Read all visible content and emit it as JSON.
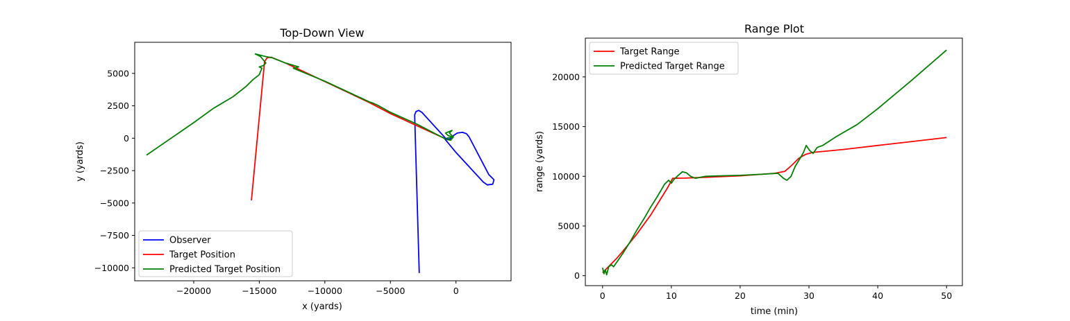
{
  "chart_data": [
    {
      "type": "line",
      "title": "Top-Down View",
      "xlabel": "x (yards)",
      "ylabel": "y (yards)",
      "xlim": [
        -24500,
        4200
      ],
      "ylim": [
        -11000,
        7400
      ],
      "xticks": [
        -20000,
        -15000,
        -10000,
        -5000,
        0
      ],
      "yticks": [
        -10000,
        -7500,
        -5000,
        -2500,
        0,
        2500,
        5000
      ],
      "xtick_labels": [
        "−20000",
        "−15000",
        "−10000",
        "−5000",
        "0"
      ],
      "ytick_labels": [
        "−10000",
        "−7500",
        "−5000",
        "−2500",
        "0",
        "2500",
        "5000"
      ],
      "grid": false,
      "legend_position": "lower-left",
      "series": [
        {
          "name": "Observer",
          "color": "#0000ff",
          "points": [
            [
              -2800,
              -10400
            ],
            [
              -3150,
              1800
            ],
            [
              -3050,
              2050
            ],
            [
              -2850,
              2150
            ],
            [
              -2600,
              2000
            ],
            [
              -800,
              0
            ],
            [
              -500,
              -100
            ],
            [
              -200,
              200
            ],
            [
              100,
              400
            ],
            [
              500,
              450
            ],
            [
              800,
              350
            ],
            [
              1000,
              100
            ],
            [
              2500,
              -2800
            ],
            [
              2900,
              -3200
            ],
            [
              2800,
              -3550
            ],
            [
              2400,
              -3600
            ],
            [
              2100,
              -3400
            ],
            [
              0,
              -1100
            ],
            [
              -900,
              0
            ]
          ]
        },
        {
          "name": "Target Position",
          "color": "#ff0000",
          "points": [
            [
              -15600,
              -4800
            ],
            [
              -14600,
              5900
            ],
            [
              -14400,
              6200
            ],
            [
              -14100,
              6250
            ],
            [
              -13000,
              5800
            ],
            [
              -6600,
              2750
            ],
            [
              -5000,
              1900
            ],
            [
              -900,
              0
            ]
          ]
        },
        {
          "name": "Predicted Target Position",
          "color": "#008000",
          "points": [
            [
              -23600,
              -1300
            ],
            [
              -20000,
              1200
            ],
            [
              -18500,
              2300
            ],
            [
              -17000,
              3200
            ],
            [
              -16000,
              4000
            ],
            [
              -15500,
              4500
            ],
            [
              -15000,
              4900
            ],
            [
              -14800,
              5400
            ],
            [
              -15000,
              5500
            ],
            [
              -14700,
              5600
            ],
            [
              -14500,
              5800
            ],
            [
              -14900,
              6300
            ],
            [
              -15300,
              6500
            ],
            [
              -14500,
              6300
            ],
            [
              -14000,
              6200
            ],
            [
              -13000,
              5800
            ],
            [
              -12000,
              5500
            ],
            [
              -12400,
              5400
            ],
            [
              -10000,
              4400
            ],
            [
              -6600,
              2800
            ],
            [
              -6300,
              2700
            ],
            [
              -5900,
              2500
            ],
            [
              -5000,
              2000
            ],
            [
              -3000,
              1100
            ],
            [
              -1500,
              300
            ],
            [
              -700,
              -100
            ],
            [
              -400,
              -150
            ],
            [
              -200,
              100
            ],
            [
              -500,
              400
            ],
            [
              -300,
              600
            ],
            [
              -800,
              400
            ],
            [
              -600,
              200
            ],
            [
              -200,
              100
            ],
            [
              -700,
              0
            ]
          ]
        }
      ]
    },
    {
      "type": "line",
      "title": "Range Plot",
      "xlabel": "time (min)",
      "ylabel": "range (yards)",
      "xlim": [
        -2.5,
        52.3
      ],
      "ylim": [
        -1000,
        23900
      ],
      "xticks": [
        0,
        10,
        20,
        30,
        40,
        50
      ],
      "yticks": [
        0,
        5000,
        10000,
        15000,
        20000
      ],
      "xtick_labels": [
        "0",
        "10",
        "20",
        "30",
        "40",
        "50"
      ],
      "ytick_labels": [
        "0",
        "5000",
        "10000",
        "15000",
        "20000"
      ],
      "grid": false,
      "legend_position": "upper-left",
      "series": [
        {
          "name": "Target Range",
          "color": "#ff0000",
          "points": [
            [
              0,
              300
            ],
            [
              1,
              1000
            ],
            [
              2,
              1700
            ],
            [
              3,
              2500
            ],
            [
              5,
              4200
            ],
            [
              7,
              6100
            ],
            [
              9.5,
              8900
            ],
            [
              10.2,
              9800
            ],
            [
              12,
              9820
            ],
            [
              15,
              9900
            ],
            [
              20,
              10050
            ],
            [
              25,
              10300
            ],
            [
              26.5,
              10500
            ],
            [
              27.5,
              11100
            ],
            [
              28.5,
              11800
            ],
            [
              29.5,
              12200
            ],
            [
              30.5,
              12400
            ],
            [
              35,
              12700
            ],
            [
              40,
              13100
            ],
            [
              45,
              13500
            ],
            [
              50,
              13900
            ]
          ]
        },
        {
          "name": "Predicted Target Range",
          "color": "#008000",
          "points": [
            [
              0,
              800
            ],
            [
              0.2,
              200
            ],
            [
              0.4,
              600
            ],
            [
              0.6,
              100
            ],
            [
              0.9,
              900
            ],
            [
              1.3,
              1100
            ],
            [
              1.6,
              900
            ],
            [
              2.2,
              1500
            ],
            [
              3,
              2300
            ],
            [
              4,
              3400
            ],
            [
              5,
              4600
            ],
            [
              6,
              5700
            ],
            [
              7,
              6900
            ],
            [
              8,
              8000
            ],
            [
              9,
              9200
            ],
            [
              9.6,
              9600
            ],
            [
              10,
              9300
            ],
            [
              10.4,
              9700
            ],
            [
              11,
              10100
            ],
            [
              11.6,
              10450
            ],
            [
              12.2,
              10350
            ],
            [
              12.8,
              10000
            ],
            [
              13.5,
              9800
            ],
            [
              14.2,
              9900
            ],
            [
              15,
              10000
            ],
            [
              17,
              10050
            ],
            [
              20,
              10100
            ],
            [
              23,
              10200
            ],
            [
              25.5,
              10300
            ],
            [
              26.3,
              9800
            ],
            [
              26.8,
              9600
            ],
            [
              27.4,
              10000
            ],
            [
              28,
              11000
            ],
            [
              28.7,
              11800
            ],
            [
              29.2,
              12400
            ],
            [
              29.6,
              13100
            ],
            [
              30.1,
              12600
            ],
            [
              30.6,
              12300
            ],
            [
              31.2,
              12900
            ],
            [
              32,
              13100
            ],
            [
              34,
              14000
            ],
            [
              37,
              15200
            ],
            [
              40,
              16800
            ],
            [
              45,
              19700
            ],
            [
              50,
              22700
            ]
          ]
        }
      ]
    }
  ]
}
